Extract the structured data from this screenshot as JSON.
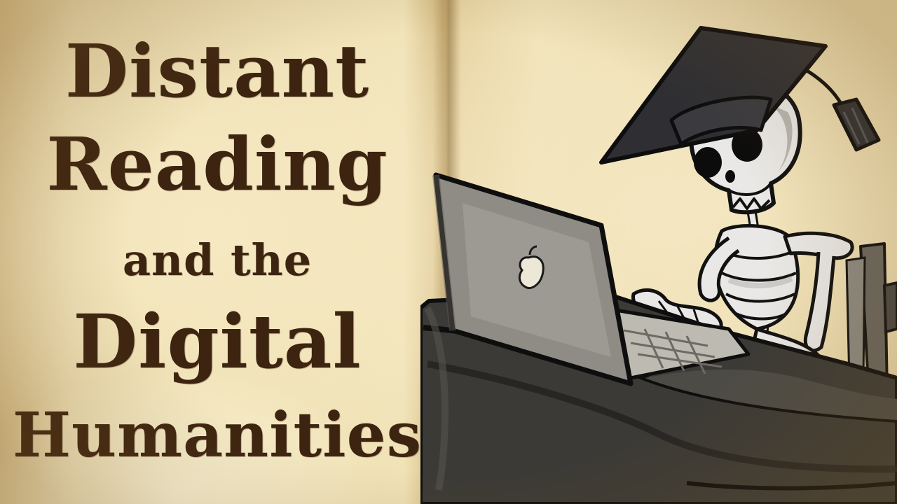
{
  "title": {
    "line1": "Distant",
    "line2": "Reading",
    "line3": "and the",
    "line4": "Digital",
    "line5": "Humanities"
  },
  "illustration": {
    "subject": "skeleton in graduation cap typing on laptop at desk",
    "icons": [
      "graduation-cap-icon",
      "skull-icon",
      "laptop-icon",
      "apple-logo-icon",
      "desk-icon",
      "chair-icon"
    ]
  },
  "colors": {
    "parchment": "#f0e2b8",
    "ink": "#3d2410",
    "desk": "#3b3a36",
    "cap": "#2f2f33",
    "bone": "#e9e8e6"
  }
}
